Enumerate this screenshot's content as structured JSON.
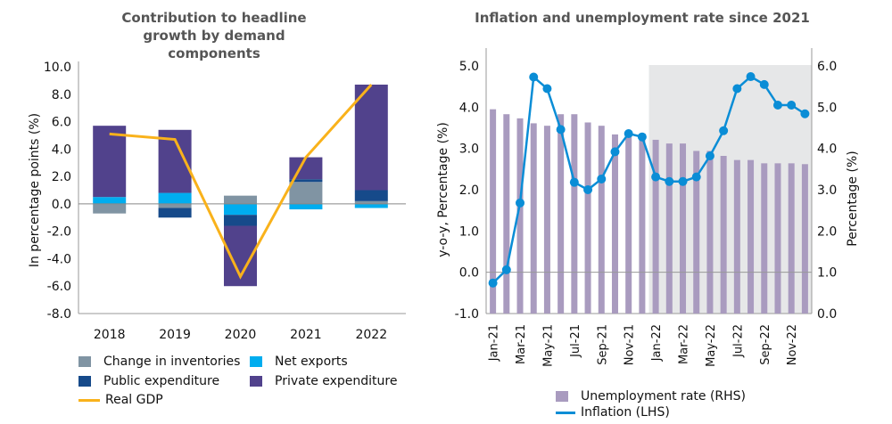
{
  "chart_data": [
    {
      "type": "bar",
      "stacked": true,
      "title": "Contribution to headline growth by demand components",
      "ylabel": "In percentage points (%)",
      "ylim": [
        -8,
        10
      ],
      "yticks": [
        "10.0",
        "8.0",
        "6.0",
        "4.0",
        "2.0",
        "0.0",
        "-2.0",
        "-4.0",
        "-6.0",
        "-8.0"
      ],
      "categories": [
        "2018",
        "2019",
        "2020",
        "2021",
        "2022"
      ],
      "series": [
        {
          "name": "Change in inventories",
          "color": "#8094a3",
          "values": [
            -0.7,
            -0.3,
            0.6,
            1.6,
            0.2
          ]
        },
        {
          "name": "Net exports",
          "color": "#00adef",
          "values": [
            0.5,
            0.8,
            -0.8,
            -0.4,
            -0.3
          ]
        },
        {
          "name": "Public expenditure",
          "color": "#164a8a",
          "values": [
            0.0,
            -0.7,
            -0.8,
            0.2,
            0.8
          ]
        },
        {
          "name": "Private expenditure",
          "color": "#51428c",
          "values": [
            5.2,
            4.6,
            -4.4,
            1.6,
            7.7
          ]
        },
        {
          "name": "Real GDP",
          "type": "line",
          "color": "#f9b21b",
          "values": [
            5.1,
            4.7,
            -5.3,
            3.4,
            8.7
          ]
        }
      ],
      "legend_position": "bottom",
      "grid": false
    },
    {
      "type": "bar+line",
      "title": "Inflation and unemployment rate since 2021",
      "ylabel_left": "y-o-y, Percentage (%)",
      "ylabel_right": "Percentage (%)",
      "ylim_left": [
        -1,
        5
      ],
      "ylim_right": [
        0,
        6
      ],
      "yticks_left": [
        "5.0",
        "4.0",
        "3.0",
        "2.0",
        "1.0",
        "0.0",
        "-1.0"
      ],
      "yticks_right": [
        "6.0",
        "5.0",
        "4.0",
        "3.0",
        "2.0",
        "1.0",
        "0.0"
      ],
      "categories": [
        "Jan-21",
        "Feb-21",
        "Mar-21",
        "Apr-21",
        "May-21",
        "Jun-21",
        "Jul-21",
        "Aug-21",
        "Sep-21",
        "Oct-21",
        "Nov-21",
        "Dec-21",
        "Jan-22",
        "Feb-22",
        "Mar-22",
        "Apr-22",
        "May-22",
        "Jun-22",
        "Jul-22",
        "Aug-22",
        "Sep-22",
        "Oct-22",
        "Nov-22",
        "Dec-22"
      ],
      "xtick_labels": [
        "Jan-21",
        "Mar-21",
        "May-21",
        "Jul-21",
        "Sep-21",
        "Nov-21",
        "Jan-22",
        "Mar-22",
        "May-22",
        "Jul-22",
        "Sep-22",
        "Nov-22"
      ],
      "shaded_from": "Jan-22",
      "shade_color": "#e6e7e8",
      "series": [
        {
          "name": "Unemployment rate (RHS)",
          "type": "bar",
          "axis": "right",
          "color": "#a99bbf",
          "values": [
            4.95,
            4.83,
            4.73,
            4.61,
            4.55,
            4.83,
            4.83,
            4.63,
            4.55,
            4.34,
            4.3,
            4.2,
            4.21,
            4.12,
            4.12,
            3.94,
            3.94,
            3.82,
            3.72,
            3.72,
            3.64,
            3.64,
            3.64,
            3.62
          ]
        },
        {
          "name": "Inflation (LHS)",
          "type": "line",
          "axis": "left",
          "color": "#0a8dd6",
          "values": [
            -0.26,
            0.06,
            1.68,
            4.73,
            4.45,
            3.46,
            2.18,
            2.0,
            2.26,
            2.92,
            3.36,
            3.28,
            2.31,
            2.2,
            2.2,
            2.31,
            2.82,
            3.43,
            4.45,
            4.74,
            4.55,
            4.05,
            4.05,
            3.84
          ]
        }
      ],
      "legend_position": "bottom",
      "grid": false
    }
  ]
}
